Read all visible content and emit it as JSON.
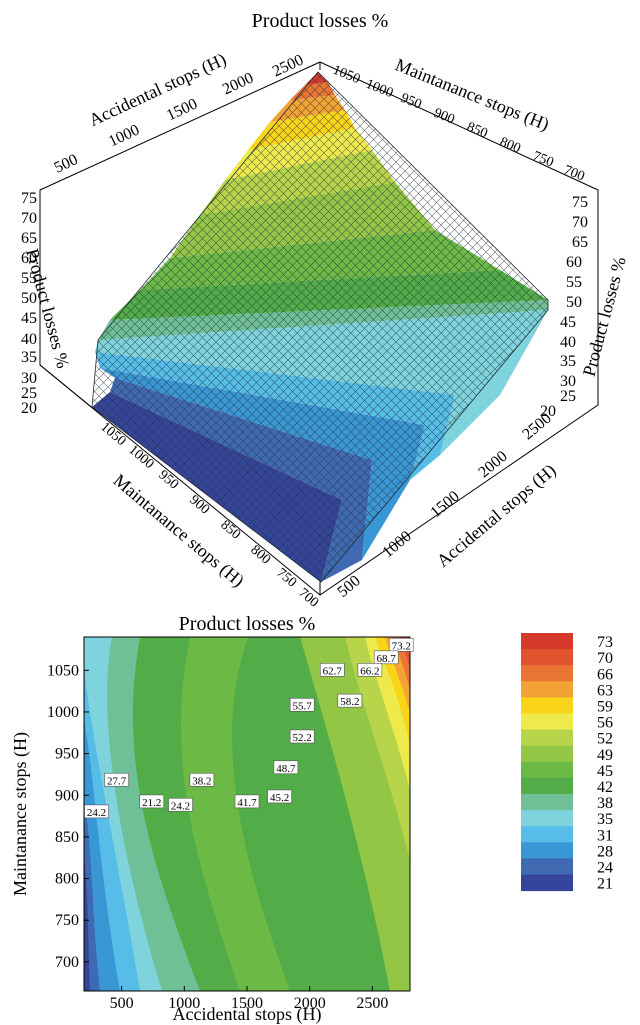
{
  "surface_plot": {
    "title": "Product losses %",
    "x_axis": {
      "label": "Accidental stops (H)",
      "ticks": [
        "500",
        "1000",
        "1500",
        "2000",
        "2500"
      ],
      "range": [
        200,
        2800
      ]
    },
    "y_axis": {
      "label": "Maintanance stops (H)",
      "ticks": [
        "700",
        "750",
        "800",
        "850",
        "900",
        "950",
        "1000",
        "1050"
      ],
      "range": [
        680,
        1080
      ]
    },
    "z_axis": {
      "label": "Product losses %",
      "ticks": [
        "20",
        "25",
        "30",
        "35",
        "40",
        "45",
        "50",
        "55",
        "60",
        "65",
        "70",
        "75"
      ],
      "range": [
        20,
        75
      ]
    }
  },
  "chart_data": {
    "type": "heatmap",
    "title": "Product losses %",
    "xlabel": "Accidental stops (H)",
    "ylabel": "Maintanance stops (H)",
    "xlim": [
      200,
      2800
    ],
    "ylim": [
      665,
      1090
    ],
    "x_ticks": [
      500,
      1000,
      1500,
      2000,
      2500
    ],
    "y_ticks": [
      700,
      750,
      800,
      850,
      900,
      950,
      1000,
      1050
    ],
    "sample_grid": {
      "x": [
        200,
        500,
        1000,
        1500,
        2000,
        2500,
        2800
      ],
      "y": [
        700,
        800,
        900,
        1000,
        1080
      ],
      "z_rows_by_y": [
        [
          23,
          24,
          30,
          40,
          47,
          51,
          53
        ],
        [
          22,
          23,
          29,
          38,
          46,
          50,
          52
        ],
        [
          24,
          26,
          33,
          42,
          49,
          54,
          56
        ],
        [
          28,
          31,
          38,
          47,
          55,
          63,
          66
        ],
        [
          33,
          36,
          42,
          51,
          59,
          69,
          74
        ]
      ]
    },
    "contour_labels": [
      {
        "text": "73.2",
        "x": 2730,
        "y": 1080
      },
      {
        "text": "68.7",
        "x": 2610,
        "y": 1065
      },
      {
        "text": "66.2",
        "x": 2480,
        "y": 1050
      },
      {
        "text": "62.7",
        "x": 2180,
        "y": 1050
      },
      {
        "text": "58.2",
        "x": 2320,
        "y": 1013
      },
      {
        "text": "55.7",
        "x": 1940,
        "y": 1008
      },
      {
        "text": "52.2",
        "x": 1940,
        "y": 970
      },
      {
        "text": "48.7",
        "x": 1810,
        "y": 933
      },
      {
        "text": "45.2",
        "x": 1760,
        "y": 898
      },
      {
        "text": "41.7",
        "x": 1500,
        "y": 892
      },
      {
        "text": "38.2",
        "x": 1140,
        "y": 918
      },
      {
        "text": "27.7",
        "x": 460,
        "y": 918
      },
      {
        "text": "24.2",
        "x": 970,
        "y": 888
      },
      {
        "text": "21.2",
        "x": 740,
        "y": 892
      },
      {
        "text": "24.2",
        "x": 300,
        "y": 880
      }
    ]
  },
  "legend": {
    "levels": [
      "73",
      "70",
      "66",
      "63",
      "59",
      "56",
      "52",
      "49",
      "45",
      "42",
      "38",
      "35",
      "31",
      "28",
      "24",
      "21"
    ],
    "colors": [
      "#d63a2c",
      "#e2542f",
      "#ea7434",
      "#f3a234",
      "#f8d519",
      "#eeea4c",
      "#b8d44a",
      "#94c646",
      "#6cb946",
      "#52ad48",
      "#6fbf97",
      "#7ed3dd",
      "#55bde8",
      "#3a97d6",
      "#3f6ab1",
      "#34449a"
    ]
  }
}
